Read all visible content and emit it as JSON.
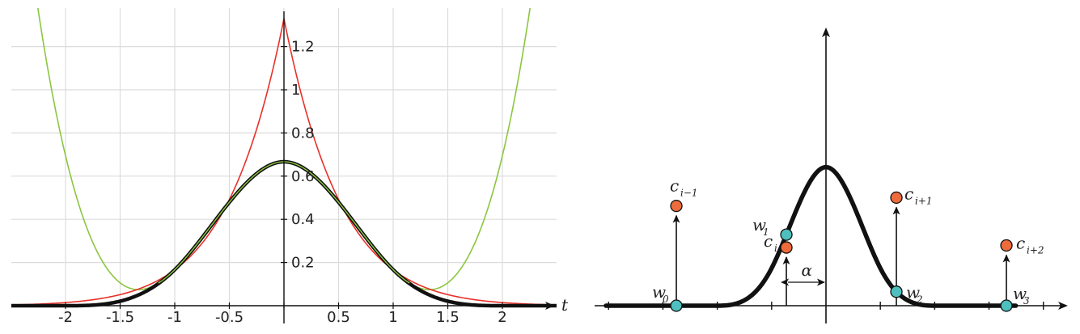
{
  "chart_data": [
    {
      "type": "line",
      "xlabel": "t",
      "xlim": [
        -2.5,
        2.5
      ],
      "ylim": [
        0,
        1.33
      ],
      "grid": true,
      "x_ticks": [
        -2,
        -1.5,
        -1,
        -0.5,
        0,
        0.5,
        1,
        1.5,
        2
      ],
      "x_tick_labels": [
        "-2",
        "-1.5",
        "-1",
        "-0.5",
        "",
        "0.5",
        "1",
        "1.5",
        "2"
      ],
      "y_ticks": [
        0.2,
        0.4,
        0.6,
        0.8,
        1,
        1.2
      ],
      "y_tick_labels": [
        "0.2",
        "0.4",
        "0.6",
        "0.8",
        "1",
        "1.2"
      ],
      "series": [
        {
          "color": "#8cc63f",
          "curve": "cubic-b-spline-polynomial-extension",
          "peak": [
            0,
            0.6667
          ],
          "minimum_near": [
            1.33,
            0.08
          ]
        },
        {
          "color": "#e8302a",
          "curve": "sharp-peak",
          "peak": [
            0,
            1.33
          ]
        },
        {
          "color": "#111111",
          "curve": "cubic-b-spline",
          "peak": [
            0,
            0.6667
          ],
          "support": [
            -2,
            2
          ]
        }
      ]
    },
    {
      "type": "diagram",
      "labels": {
        "w0": "w",
        "w0_sub": "0",
        "w1": "w",
        "w1_sub": "1",
        "w2": "w",
        "w2_sub": "2",
        "w3": "w",
        "w3_sub": "3",
        "ci_m1": "c",
        "ci_m1_sub": "i−1",
        "ci": "c",
        "ci_sub": "i",
        "ci_p1": "c",
        "ci_p1_sub": "i+1",
        "ci_p2": "c",
        "ci_p2_sub": "i+2",
        "alpha": "α"
      },
      "sample_heights": {
        "ci_m1": 0.48,
        "ci": 0.28,
        "ci_p1": 0.52,
        "ci_p2": 0.29
      },
      "colors": {
        "control_point": "#ee6b3b",
        "weight_point": "#4dbfbe",
        "curve": "#111111"
      }
    }
  ]
}
